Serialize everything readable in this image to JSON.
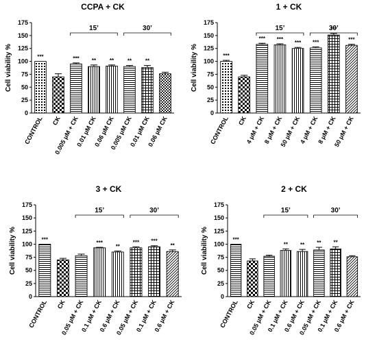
{
  "chart_data": [
    {
      "type": "bar",
      "title": "CCPA + CK",
      "ylabel": "Cell viability %",
      "xlabel": "",
      "ylim": [
        0,
        175
      ],
      "yticks": [
        0,
        25,
        50,
        75,
        100,
        125,
        150,
        175
      ],
      "categories": [
        "CONTROL",
        "CK",
        "0.005 μM + CK",
        "0.01 μM CK",
        "0.06 μM CK",
        "0.005 μM CK",
        "0.01 μM CK",
        "0.06 μM CK"
      ],
      "values": [
        100,
        70,
        95,
        90,
        91,
        90,
        88,
        76
      ],
      "errors": [
        0,
        6,
        2,
        3,
        2,
        2,
        4,
        3
      ],
      "patterns": [
        "dots",
        "checker",
        "hlines",
        "vlines",
        "vlines",
        "hlines",
        "grid",
        "checker-fine"
      ],
      "significance": [
        "***",
        "",
        "***",
        "**",
        "**",
        "**",
        "**",
        ""
      ],
      "groups": [
        {
          "label": "15’",
          "from": 2,
          "to": 4
        },
        {
          "label": "30’",
          "from": 5,
          "to": 7
        }
      ]
    },
    {
      "type": "bar",
      "title": "1 + CK",
      "ylabel": "Cell viability %",
      "xlabel": "",
      "ylim": [
        0,
        175
      ],
      "yticks": [
        0,
        25,
        50,
        75,
        100,
        125,
        150,
        175
      ],
      "categories": [
        "CONTROL",
        "CK",
        "4 μM + CK",
        "8 μM + CK",
        "50 μM + CK",
        "4 μM + CK",
        "8 μM + CK",
        "50 μM + CK"
      ],
      "values": [
        100,
        70,
        133,
        132,
        125,
        126,
        151,
        131
      ],
      "errors": [
        2,
        3,
        2,
        2,
        2,
        2,
        3,
        2
      ],
      "patterns": [
        "dots",
        "checker",
        "hlines",
        "vlines",
        "vlines",
        "hlines",
        "grid",
        "diag"
      ],
      "significance": [
        "***",
        "",
        "***",
        "***",
        "***",
        "***",
        "***",
        "***"
      ],
      "groups": [
        {
          "label": "15’",
          "from": 2,
          "to": 4
        },
        {
          "label": "30’",
          "from": 5,
          "to": 7
        }
      ]
    },
    {
      "type": "bar",
      "title": "3 + CK",
      "ylabel": "Cell viability %",
      "xlabel": "",
      "ylim": [
        0,
        175
      ],
      "yticks": [
        0,
        25,
        50,
        75,
        100,
        125,
        150,
        175
      ],
      "categories": [
        "CONTROL",
        "CK",
        "0.05 μM + CK",
        "0.1 μM + CK",
        "0.6 μM + CK",
        "0.05 μM + CK",
        "0.1 μM + CK",
        "0.6 μM + CK"
      ],
      "values": [
        100,
        70,
        78,
        93,
        85,
        93,
        95,
        86
      ],
      "errors": [
        0,
        3,
        3,
        1,
        2,
        2,
        2,
        3
      ],
      "patterns": [
        "hlines",
        "checker",
        "hlines",
        "vlines",
        "vlines",
        "grid",
        "grid",
        "diag"
      ],
      "significance": [
        "***",
        "",
        "",
        "***",
        "**",
        "***",
        "***",
        "**"
      ],
      "groups": [
        {
          "label": "15’",
          "from": 2,
          "to": 4
        },
        {
          "label": "30’",
          "from": 5,
          "to": 7
        }
      ]
    },
    {
      "type": "bar",
      "title": "2 + CK",
      "ylabel": "Cell viability %",
      "xlabel": "",
      "ylim": [
        0,
        175
      ],
      "yticks": [
        0,
        25,
        50,
        75,
        100,
        125,
        150,
        175
      ],
      "categories": [
        "CONTROL",
        "CK",
        "0.05 μM + CK",
        "0.1 μM + CK",
        "0.6 μM + CK",
        "0.05 μM + CK",
        "0.1 μM + CK",
        "0.6 μM + CK"
      ],
      "values": [
        100,
        68,
        77,
        88,
        86,
        89,
        91,
        76
      ],
      "errors": [
        0,
        4,
        2,
        3,
        4,
        5,
        4,
        2
      ],
      "patterns": [
        "hlines",
        "checker",
        "hlines",
        "vlines",
        "vlines",
        "hlines",
        "grid",
        "diag"
      ],
      "significance": [
        "***",
        "",
        "",
        "**",
        "**",
        "**",
        "**",
        ""
      ],
      "groups": [
        {
          "label": "15’",
          "from": 2,
          "to": 4
        },
        {
          "label": "30’",
          "from": 5,
          "to": 7
        }
      ]
    }
  ]
}
